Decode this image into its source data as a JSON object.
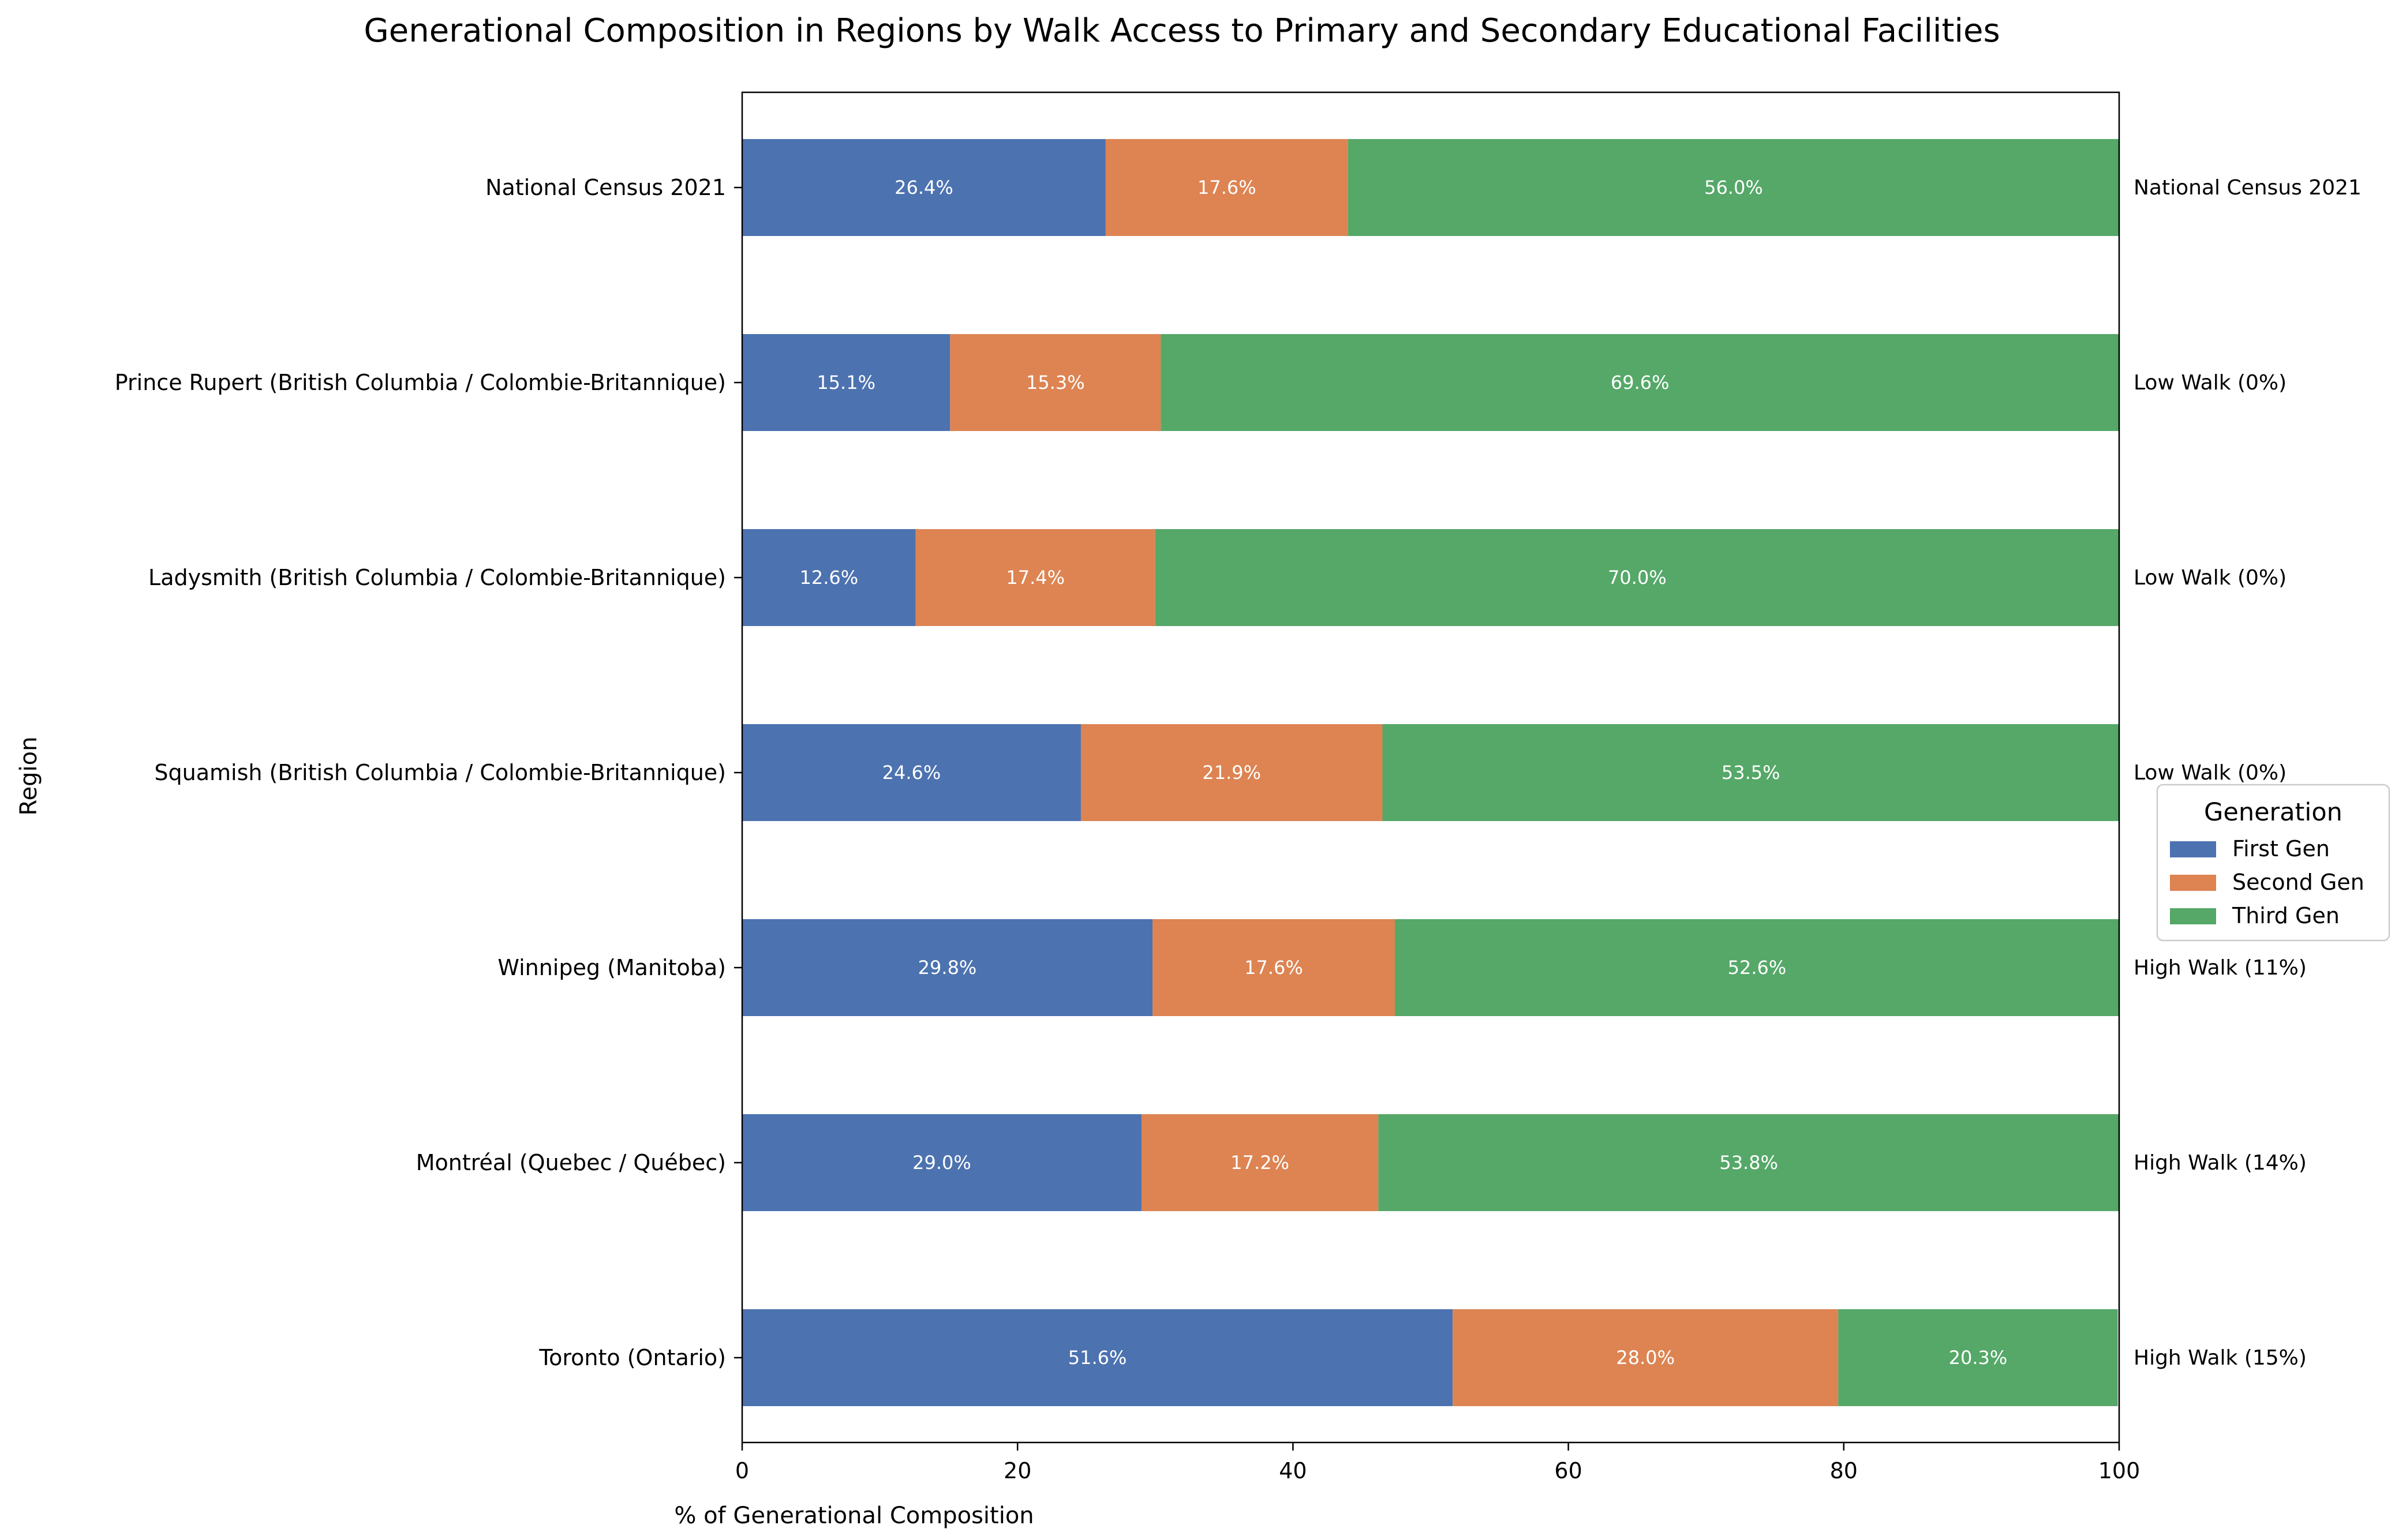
{
  "chart_data": {
    "type": "bar",
    "orientation": "horizontal",
    "stacked": true,
    "title": "Generational Composition in Regions by Walk Access to Primary and Secondary Educational Facilities",
    "xlabel": "% of Generational Composition",
    "ylabel": "Region",
    "xlim": [
      0,
      100
    ],
    "xticks": [
      "0",
      "20",
      "40",
      "60",
      "80",
      "100"
    ],
    "grid": false,
    "categories": [
      "National Census 2021",
      "Prince Rupert (British Columbia / Colombie-Britannique)",
      "Ladysmith (British Columbia / Colombie-Britannique)",
      "Squamish (British Columbia / Colombie-Britannique)",
      "Winnipeg (Manitoba)",
      "Montréal (Quebec / Québec)",
      "Toronto (Ontario)"
    ],
    "series": [
      {
        "name": "First Gen",
        "color": "#4c72b0",
        "values": [
          26.4,
          15.1,
          12.6,
          24.6,
          29.8,
          29.0,
          51.6
        ],
        "labels": [
          "26.4%",
          "15.1%",
          "12.6%",
          "24.6%",
          "29.8%",
          "29.0%",
          "51.6%"
        ]
      },
      {
        "name": "Second Gen",
        "color": "#dd8452",
        "values": [
          17.6,
          15.3,
          17.4,
          21.9,
          17.6,
          17.2,
          28.0
        ],
        "labels": [
          "17.6%",
          "15.3%",
          "17.4%",
          "21.9%",
          "17.6%",
          "17.2%",
          "28.0%"
        ]
      },
      {
        "name": "Third Gen",
        "color": "#55a868",
        "values": [
          56.0,
          69.6,
          70.0,
          53.5,
          52.6,
          53.8,
          20.3
        ],
        "labels": [
          "56.0%",
          "69.6%",
          "70.0%",
          "53.5%",
          "52.6%",
          "53.8%",
          "20.3%"
        ]
      }
    ],
    "annotations": [
      "National Census 2021",
      "Low Walk (0%)",
      "Low Walk (0%)",
      "Low Walk (0%)",
      "High Walk (11%)",
      "High Walk (14%)",
      "High Walk (15%)"
    ],
    "legend": {
      "title": "Generation",
      "position": "right"
    }
  }
}
